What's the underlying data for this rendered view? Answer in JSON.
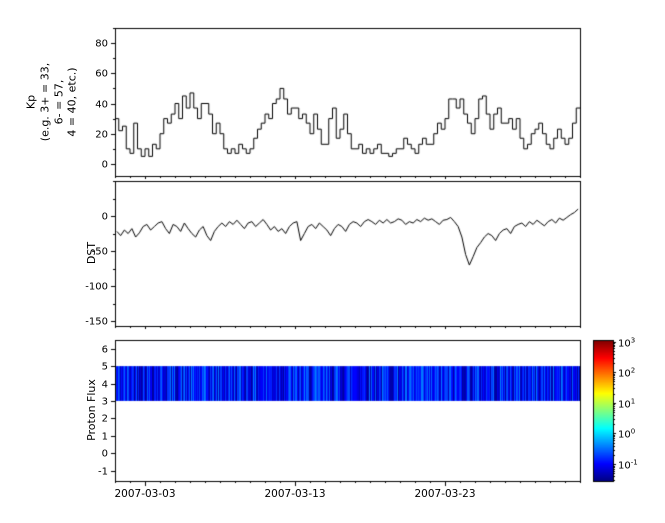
{
  "chart_data": [
    {
      "type": "line",
      "id": "kp",
      "title": "",
      "ylabel": "Kp\n(e.g. 3+ = 33,\n6- = 57,\n4 = 40, etc.)",
      "ylim": [
        -8,
        90
      ],
      "yticks": [
        0,
        20,
        40,
        60,
        80
      ],
      "y_minor_step": 10,
      "style": "steps",
      "x_days_per_point": 0.25,
      "values": [
        30,
        22,
        25,
        10,
        7,
        27,
        10,
        5,
        10,
        5,
        13,
        10,
        20,
        30,
        27,
        33,
        40,
        30,
        45,
        37,
        47,
        37,
        30,
        40,
        40,
        33,
        20,
        27,
        20,
        10,
        7,
        10,
        7,
        13,
        10,
        7,
        10,
        17,
        23,
        27,
        33,
        30,
        40,
        43,
        50,
        43,
        33,
        37,
        37,
        30,
        33,
        27,
        20,
        33,
        23,
        13,
        13,
        30,
        37,
        17,
        23,
        33,
        20,
        10,
        10,
        13,
        7,
        10,
        7,
        10,
        13,
        7,
        7,
        5,
        7,
        10,
        10,
        17,
        13,
        10,
        7,
        13,
        17,
        13,
        13,
        20,
        27,
        23,
        30,
        43,
        43,
        37,
        43,
        33,
        27,
        20,
        30,
        43,
        45,
        33,
        23,
        33,
        37,
        27,
        27,
        30,
        23,
        30,
        17,
        10,
        13,
        20,
        23,
        27,
        20,
        13,
        10,
        17,
        23,
        17,
        13,
        17,
        27,
        37
      ]
    },
    {
      "type": "line",
      "id": "dst",
      "title": "",
      "ylabel": "DST",
      "ylim": [
        -157,
        50
      ],
      "yticks": [
        0,
        -50,
        -100,
        -150
      ],
      "y_minor_step": 25,
      "style": "line",
      "x_days_per_point": 0.25,
      "values": [
        -22,
        -28,
        -20,
        -25,
        -18,
        -30,
        -24,
        -15,
        -12,
        -20,
        -15,
        -10,
        -8,
        -18,
        -25,
        -12,
        -15,
        -22,
        -10,
        -18,
        -25,
        -30,
        -20,
        -15,
        -28,
        -35,
        -22,
        -15,
        -10,
        -15,
        -8,
        -12,
        -6,
        -12,
        -18,
        -10,
        -8,
        -15,
        -10,
        -5,
        -12,
        -20,
        -15,
        -22,
        -18,
        -25,
        -15,
        -10,
        -8,
        -35,
        -25,
        -15,
        -12,
        -18,
        -10,
        -15,
        -20,
        -28,
        -18,
        -12,
        -15,
        -22,
        -12,
        -8,
        -10,
        -15,
        -8,
        -5,
        -8,
        -12,
        -6,
        -10,
        -5,
        -10,
        -8,
        -4,
        -6,
        -12,
        -8,
        -10,
        -5,
        -8,
        -3,
        -6,
        -4,
        -8,
        -12,
        -6,
        -5,
        -2,
        -8,
        -15,
        -30,
        -55,
        -70,
        -58,
        -45,
        -38,
        -30,
        -25,
        -28,
        -35,
        -25,
        -20,
        -18,
        -25,
        -15,
        -12,
        -10,
        -15,
        -8,
        -12,
        -6,
        -10,
        -14,
        -8,
        -5,
        -10,
        -3,
        -6,
        -2,
        2,
        5,
        10
      ]
    },
    {
      "type": "heatmap",
      "id": "proton",
      "title": "",
      "ylabel": "Proton Flux",
      "ylim": [
        -1.6,
        6.5
      ],
      "yticks": [
        -1,
        0,
        1,
        2,
        3,
        4,
        5,
        6
      ],
      "band": {
        "y_min": 3,
        "y_max": 5,
        "log10_flux_min": -1.45,
        "log10_flux_max": -0.4
      },
      "colorbar": {
        "log_min": -1.55,
        "log_max": 3.05,
        "tick_exponents": [
          3,
          2,
          1,
          0,
          -1
        ],
        "colormap": "jet"
      }
    }
  ],
  "x_axis": {
    "xlim_days": [
      0,
      31
    ],
    "start_date": "2007-03-01",
    "ticks": [
      {
        "day": 2,
        "label": "2007-03-03"
      },
      {
        "day": 12,
        "label": "2007-03-13"
      },
      {
        "day": 22,
        "label": "2007-03-23"
      }
    ],
    "minor_tick_step_days": 1
  },
  "colors": {
    "line": "#000000",
    "frame": "#000000",
    "background": "#ffffff",
    "text": "#000000"
  }
}
